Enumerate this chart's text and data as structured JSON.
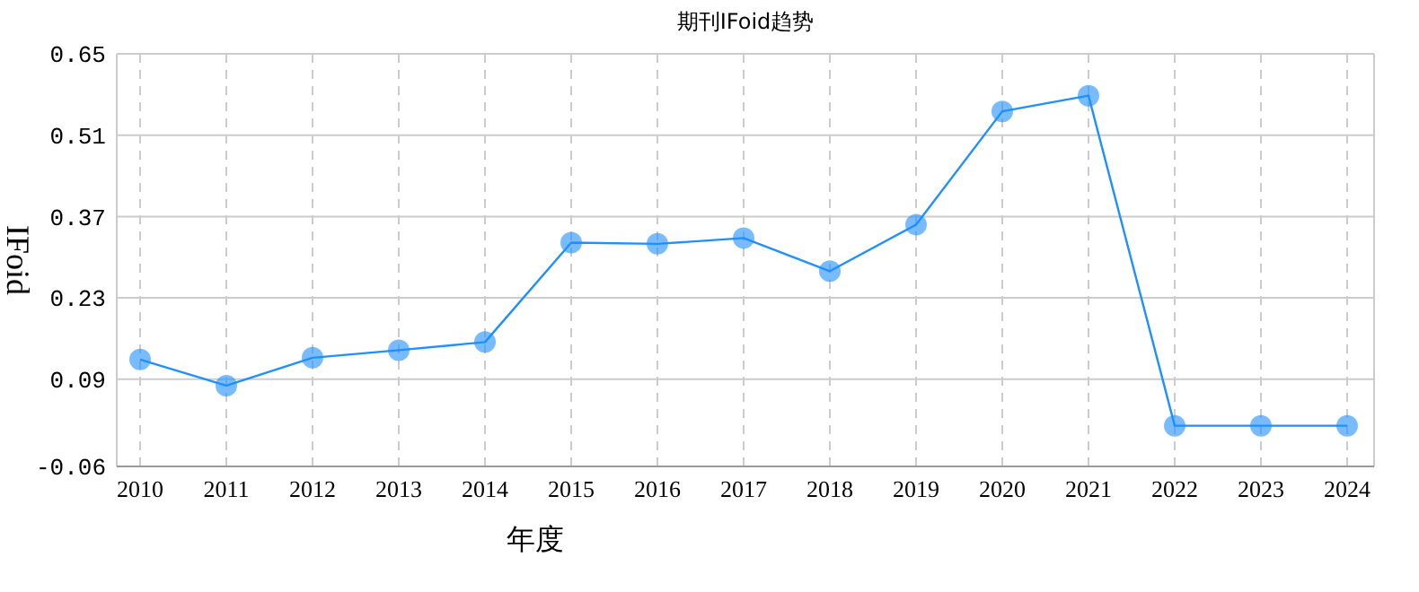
{
  "chart_data": {
    "type": "line",
    "title": "期刊IFoid趋势",
    "xlabel": "年度",
    "ylabel": "IFoid",
    "categories": [
      "2010",
      "2011",
      "2012",
      "2013",
      "2014",
      "2015",
      "2016",
      "2017",
      "2018",
      "2019",
      "2020",
      "2021",
      "2022",
      "2023",
      "2024"
    ],
    "series": [
      {
        "color": "#1e90ff",
        "values": [
          0.124,
          0.079,
          0.127,
          0.14,
          0.154,
          0.325,
          0.323,
          0.333,
          0.276,
          0.356,
          0.551,
          0.578,
          0.01,
          0.01,
          0.01
        ]
      }
    ],
    "ylim": [
      -0.06,
      0.65
    ],
    "yticks": [
      -0.06,
      0.09,
      0.23,
      0.37,
      0.51,
      0.65
    ],
    "grid": true,
    "marker": "circle",
    "line_style": "solid"
  }
}
